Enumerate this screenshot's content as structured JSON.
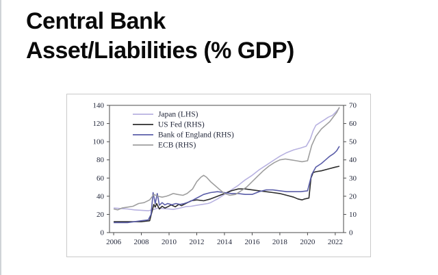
{
  "page": {
    "title_line1": "Central Bank",
    "title_line2": "Asset/Liabilities (% GDP)"
  },
  "chart_data": {
    "type": "line",
    "title": "Central Bank Asset/Liabilities (% GDP)",
    "grid": false,
    "legend_position": "top-left",
    "x_range": [
      2005.7,
      2022.6
    ],
    "x_ticks": [
      2006,
      2008,
      2010,
      2012,
      2014,
      2016,
      2018,
      2020,
      2022
    ],
    "left_axis": {
      "max": 140,
      "ticks": [
        0,
        20,
        40,
        60,
        80,
        100,
        120,
        140
      ]
    },
    "right_axis": {
      "max": 70,
      "ticks": [
        0,
        10,
        20,
        30,
        40,
        50,
        60,
        70
      ]
    },
    "series": [
      {
        "name": "Japan (LHS)",
        "axis": "left",
        "color": "#b7b1e0",
        "points": [
          [
            2006.0,
            27
          ],
          [
            2006.5,
            26.5
          ],
          [
            2007.0,
            26
          ],
          [
            2007.5,
            25
          ],
          [
            2008.0,
            24.5
          ],
          [
            2008.5,
            24
          ],
          [
            2008.9,
            25.5
          ],
          [
            2009.2,
            27
          ],
          [
            2009.5,
            26.5
          ],
          [
            2010.0,
            26
          ],
          [
            2010.3,
            25.5
          ],
          [
            2010.8,
            27
          ],
          [
            2011.2,
            28.5
          ],
          [
            2011.6,
            29
          ],
          [
            2012.0,
            30
          ],
          [
            2012.4,
            31
          ],
          [
            2012.8,
            32
          ],
          [
            2013.0,
            33
          ],
          [
            2013.5,
            37
          ],
          [
            2014.0,
            42
          ],
          [
            2014.5,
            47
          ],
          [
            2015.0,
            52
          ],
          [
            2015.5,
            58
          ],
          [
            2016.0,
            63
          ],
          [
            2016.5,
            69
          ],
          [
            2017.0,
            74
          ],
          [
            2017.5,
            79
          ],
          [
            2018.0,
            84
          ],
          [
            2018.5,
            88
          ],
          [
            2019.0,
            91
          ],
          [
            2019.5,
            93
          ],
          [
            2019.9,
            95
          ],
          [
            2020.2,
            103
          ],
          [
            2020.4,
            112
          ],
          [
            2020.6,
            118
          ],
          [
            2020.9,
            121
          ],
          [
            2021.2,
            124
          ],
          [
            2021.5,
            127
          ],
          [
            2021.8,
            129
          ],
          [
            2022.0,
            132
          ],
          [
            2022.3,
            137
          ]
        ]
      },
      {
        "name": "US Fed (RHS)",
        "axis": "right",
        "color": "#2b2b2b",
        "points": [
          [
            2006.0,
            6
          ],
          [
            2006.5,
            6
          ],
          [
            2007.0,
            6
          ],
          [
            2007.5,
            6
          ],
          [
            2008.0,
            6
          ],
          [
            2008.6,
            6.5
          ],
          [
            2008.75,
            11
          ],
          [
            2008.9,
            15.5
          ],
          [
            2009.0,
            14
          ],
          [
            2009.1,
            16
          ],
          [
            2009.3,
            13
          ],
          [
            2009.5,
            14.5
          ],
          [
            2009.7,
            13.5
          ],
          [
            2009.9,
            14.2
          ],
          [
            2010.15,
            15.2
          ],
          [
            2010.45,
            14.2
          ],
          [
            2010.7,
            15.5
          ],
          [
            2010.9,
            14.8
          ],
          [
            2011.2,
            16
          ],
          [
            2011.6,
            17.5
          ],
          [
            2012.0,
            18
          ],
          [
            2012.5,
            17.5
          ],
          [
            2013.0,
            18.5
          ],
          [
            2013.5,
            20
          ],
          [
            2014.0,
            21.5
          ],
          [
            2014.5,
            23
          ],
          [
            2015.0,
            24
          ],
          [
            2015.5,
            24
          ],
          [
            2016.0,
            23.5
          ],
          [
            2016.5,
            23
          ],
          [
            2017.0,
            22.5
          ],
          [
            2017.5,
            22
          ],
          [
            2018.0,
            21.5
          ],
          [
            2018.5,
            20.5
          ],
          [
            2019.0,
            19.5
          ],
          [
            2019.3,
            18.5
          ],
          [
            2019.6,
            18
          ],
          [
            2019.8,
            18.5
          ],
          [
            2020.1,
            19
          ],
          [
            2020.25,
            30
          ],
          [
            2020.4,
            33
          ],
          [
            2020.6,
            33.5
          ],
          [
            2021.0,
            34
          ],
          [
            2021.5,
            35
          ],
          [
            2022.0,
            36
          ],
          [
            2022.3,
            36.5
          ]
        ]
      },
      {
        "name": "Bank of England (RHS)",
        "axis": "right",
        "color": "#5a5da8",
        "points": [
          [
            2006.0,
            5.5
          ],
          [
            2006.5,
            5.5
          ],
          [
            2007.0,
            5.5
          ],
          [
            2007.5,
            6
          ],
          [
            2008.0,
            6.5
          ],
          [
            2008.5,
            7
          ],
          [
            2008.7,
            10
          ],
          [
            2008.85,
            22
          ],
          [
            2009.0,
            16
          ],
          [
            2009.15,
            21.5
          ],
          [
            2009.3,
            15
          ],
          [
            2009.5,
            16.5
          ],
          [
            2009.7,
            15.2
          ],
          [
            2009.9,
            16
          ],
          [
            2010.2,
            15.3
          ],
          [
            2010.5,
            16
          ],
          [
            2010.8,
            15.5
          ],
          [
            2011.1,
            16
          ],
          [
            2011.5,
            17
          ],
          [
            2012.0,
            19
          ],
          [
            2012.5,
            21
          ],
          [
            2013.0,
            22
          ],
          [
            2013.5,
            22.5
          ],
          [
            2014.0,
            22
          ],
          [
            2014.5,
            21.5
          ],
          [
            2015.0,
            21.5
          ],
          [
            2015.5,
            21
          ],
          [
            2016.0,
            21
          ],
          [
            2016.5,
            22.5
          ],
          [
            2017.0,
            23.5
          ],
          [
            2017.5,
            23.5
          ],
          [
            2018.0,
            23
          ],
          [
            2018.5,
            22.5
          ],
          [
            2019.0,
            22.5
          ],
          [
            2019.5,
            22.5
          ],
          [
            2020.0,
            23
          ],
          [
            2020.3,
            32
          ],
          [
            2020.6,
            36
          ],
          [
            2021.0,
            38
          ],
          [
            2021.3,
            40
          ],
          [
            2021.6,
            42
          ],
          [
            2021.9,
            43.5
          ],
          [
            2022.1,
            45
          ],
          [
            2022.3,
            47.5
          ]
        ]
      },
      {
        "name": "ECB (RHS)",
        "axis": "right",
        "color": "#9e9e9e",
        "points": [
          [
            2006.0,
            13
          ],
          [
            2006.3,
            12.5
          ],
          [
            2006.6,
            13.5
          ],
          [
            2007.0,
            14
          ],
          [
            2007.4,
            14.5
          ],
          [
            2007.8,
            16
          ],
          [
            2008.2,
            16.5
          ],
          [
            2008.6,
            18
          ],
          [
            2008.9,
            21
          ],
          [
            2009.2,
            20
          ],
          [
            2009.5,
            19.5
          ],
          [
            2009.8,
            20
          ],
          [
            2010.0,
            20.5
          ],
          [
            2010.3,
            21.5
          ],
          [
            2010.6,
            21
          ],
          [
            2011.0,
            20.5
          ],
          [
            2011.3,
            21.5
          ],
          [
            2011.7,
            24
          ],
          [
            2012.0,
            28
          ],
          [
            2012.3,
            30.5
          ],
          [
            2012.5,
            31.5
          ],
          [
            2012.7,
            30.5
          ],
          [
            2013.0,
            28
          ],
          [
            2013.3,
            26
          ],
          [
            2013.6,
            24
          ],
          [
            2014.0,
            21.5
          ],
          [
            2014.4,
            20.5
          ],
          [
            2014.8,
            21
          ],
          [
            2015.2,
            23
          ],
          [
            2015.6,
            25
          ],
          [
            2016.0,
            28
          ],
          [
            2016.4,
            31
          ],
          [
            2016.8,
            34
          ],
          [
            2017.2,
            36.5
          ],
          [
            2017.6,
            38.5
          ],
          [
            2018.0,
            40
          ],
          [
            2018.4,
            40.5
          ],
          [
            2018.8,
            40
          ],
          [
            2019.2,
            39.5
          ],
          [
            2019.6,
            39
          ],
          [
            2020.0,
            39.5
          ],
          [
            2020.3,
            48
          ],
          [
            2020.6,
            53
          ],
          [
            2021.0,
            57
          ],
          [
            2021.3,
            59
          ],
          [
            2021.6,
            61
          ],
          [
            2021.9,
            64
          ],
          [
            2022.1,
            66
          ],
          [
            2022.3,
            69
          ]
        ]
      }
    ]
  }
}
